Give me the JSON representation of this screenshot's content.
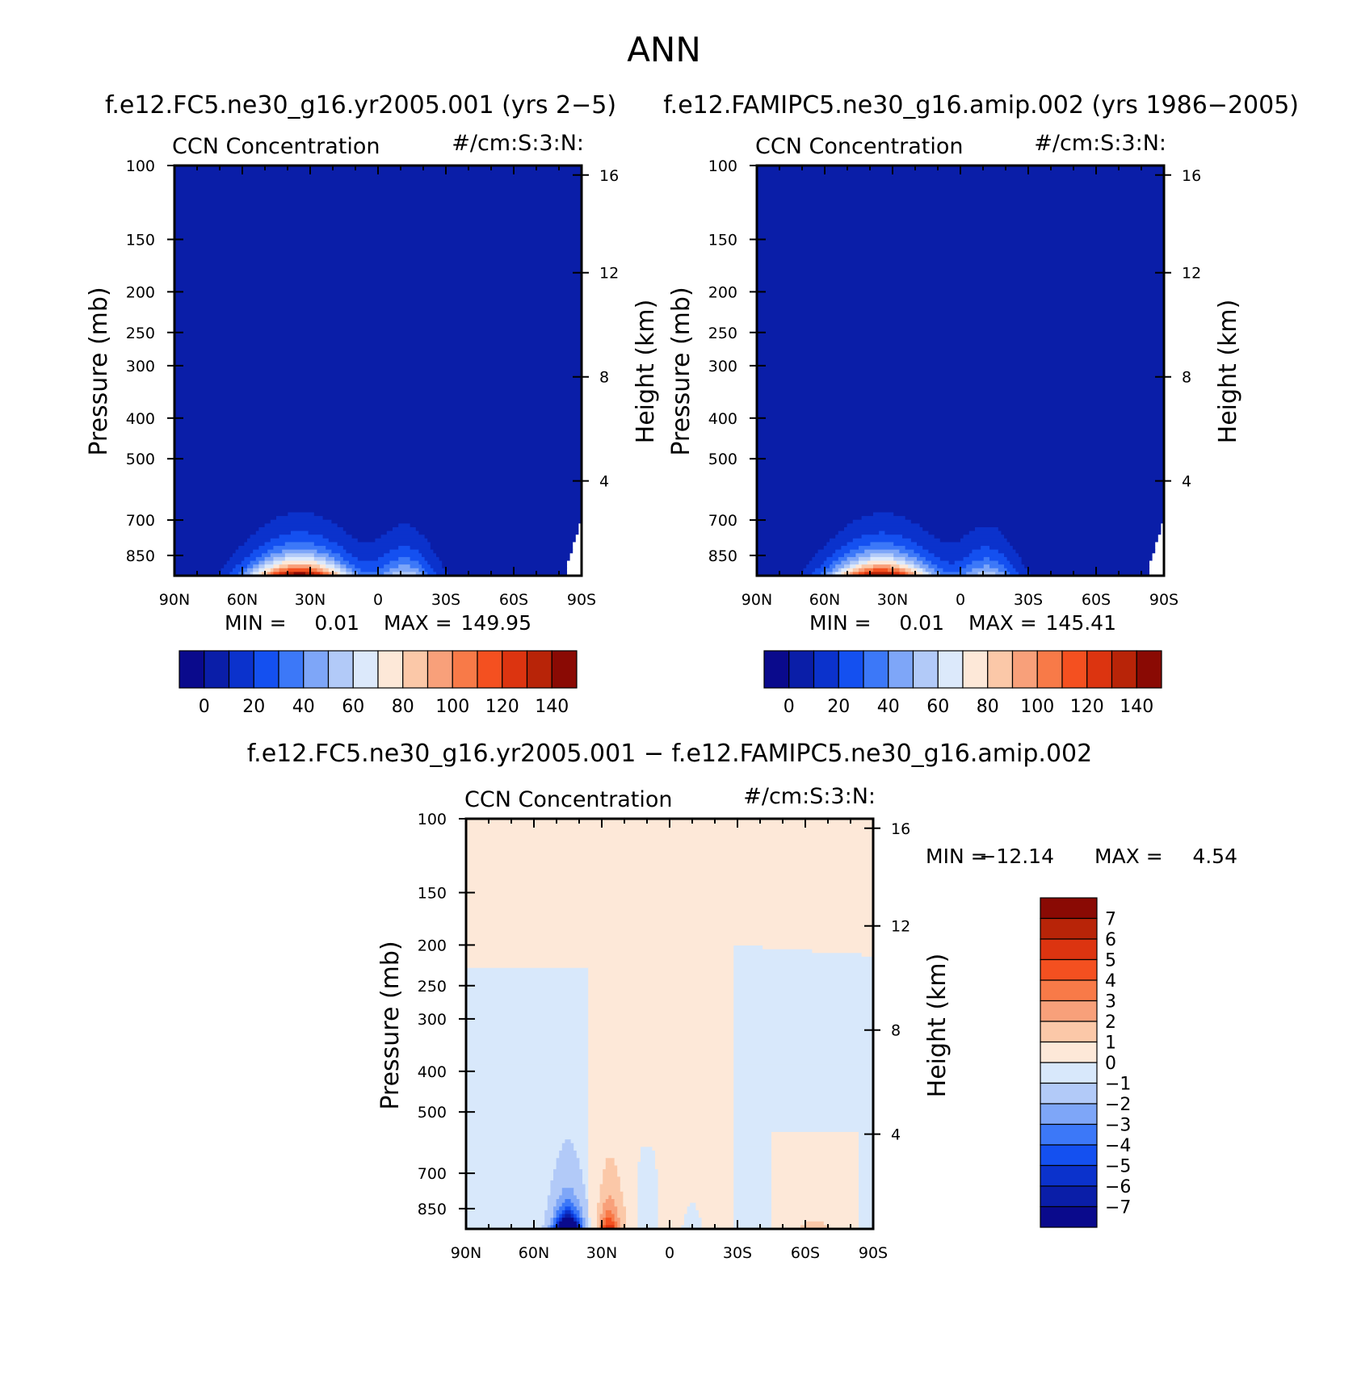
{
  "page": {
    "title": "ANN",
    "diff_title": "f.e12.FC5.ne30_g16.yr2005.001 − f.e12.FAMIPC5.ne30_g16.amip.002"
  },
  "colors": {
    "abs_palette": [
      "#0a0a8c",
      "#0a1ea8",
      "#0b32cc",
      "#1450f0",
      "#3c78f8",
      "#7ea6f8",
      "#b2caf8",
      "#dce9fb",
      "#fde8d8",
      "#fbc8a8",
      "#f8a07a",
      "#f87a48",
      "#f45020",
      "#dc3410",
      "#b82408",
      "#8a0a04"
    ],
    "diff_palette": [
      "#0a0a8c",
      "#0a1ea8",
      "#0b32cc",
      "#1450f0",
      "#3c78f8",
      "#7ea6f8",
      "#b2caf8",
      "#d8e8fb",
      "#fde8d8",
      "#fbc8a8",
      "#f8a07a",
      "#f87a48",
      "#f45020",
      "#dc3410",
      "#b82408",
      "#8a0a04"
    ]
  },
  "chart_data": [
    {
      "type": "heatmap",
      "title": "f.e12.FC5.ne30_g16.yr2005.001 (yrs 2−5)",
      "variable": "CCN Concentration",
      "units": "#/cm:S:3:N:",
      "xlabel": "",
      "ylabel": "Pressure (mb)",
      "ylabel_right": "Height (km)",
      "xticks": [
        "90N",
        "60N",
        "30N",
        "0",
        "30S",
        "60S",
        "90S"
      ],
      "yticks": [
        100,
        150,
        200,
        250,
        300,
        400,
        500,
        700,
        850
      ],
      "yticks_right": [
        16,
        12,
        8,
        4
      ],
      "ylim": [
        100,
        950
      ],
      "stats": {
        "min_label": "MIN =",
        "min": "0.01",
        "max_label": "MAX =",
        "max": "149.95"
      },
      "levels": [
        0,
        10,
        20,
        30,
        40,
        50,
        60,
        70,
        80,
        90,
        100,
        110,
        120,
        130,
        140
      ],
      "colorbar_labels": [
        "0",
        "20",
        "40",
        "60",
        "80",
        "100",
        "120",
        "140"
      ],
      "peak_lat": 35,
      "peak_value": 149.95
    },
    {
      "type": "heatmap",
      "title": "f.e12.FAMIPC5.ne30_g16.amip.002 (yrs 1986−2005)",
      "variable": "CCN Concentration",
      "units": "#/cm:S:3:N:",
      "xlabel": "",
      "ylabel": "Pressure (mb)",
      "ylabel_right": "Height (km)",
      "xticks": [
        "90N",
        "60N",
        "30N",
        "0",
        "30S",
        "60S",
        "90S"
      ],
      "yticks": [
        100,
        150,
        200,
        250,
        300,
        400,
        500,
        700,
        850
      ],
      "yticks_right": [
        16,
        12,
        8,
        4
      ],
      "ylim": [
        100,
        950
      ],
      "stats": {
        "min_label": "MIN =",
        "min": "0.01",
        "max_label": "MAX =",
        "max": "145.41"
      },
      "levels": [
        0,
        10,
        20,
        30,
        40,
        50,
        60,
        70,
        80,
        90,
        100,
        110,
        120,
        130,
        140
      ],
      "colorbar_labels": [
        "0",
        "20",
        "40",
        "60",
        "80",
        "100",
        "120",
        "140"
      ],
      "peak_lat": 35,
      "peak_value": 145.41
    },
    {
      "type": "heatmap",
      "title": "f.e12.FC5.ne30_g16.yr2005.001 − f.e12.FAMIPC5.ne30_g16.amip.002",
      "variable": "CCN Concentration",
      "units": "#/cm:S:3:N:",
      "xlabel": "",
      "ylabel": "Pressure (mb)",
      "ylabel_right": "Height (km)",
      "xticks": [
        "90N",
        "60N",
        "30N",
        "0",
        "30S",
        "60S",
        "90S"
      ],
      "yticks": [
        100,
        150,
        200,
        250,
        300,
        400,
        500,
        700,
        850
      ],
      "yticks_right": [
        16,
        12,
        8,
        4
      ],
      "ylim": [
        100,
        950
      ],
      "stats": {
        "min_label": "MIN =",
        "min": "−12.14",
        "max_label": "MAX =",
        "max": "4.54"
      },
      "levels": [
        -7,
        -6,
        -5,
        -4,
        -3,
        -2,
        -1,
        0,
        1,
        2,
        3,
        4,
        5,
        6,
        7
      ],
      "colorbar_labels": [
        "7",
        "6",
        "5",
        "4",
        "3",
        "2",
        "1",
        "0",
        "−1",
        "−2",
        "−3",
        "−4",
        "−5",
        "−6",
        "−7"
      ]
    }
  ]
}
